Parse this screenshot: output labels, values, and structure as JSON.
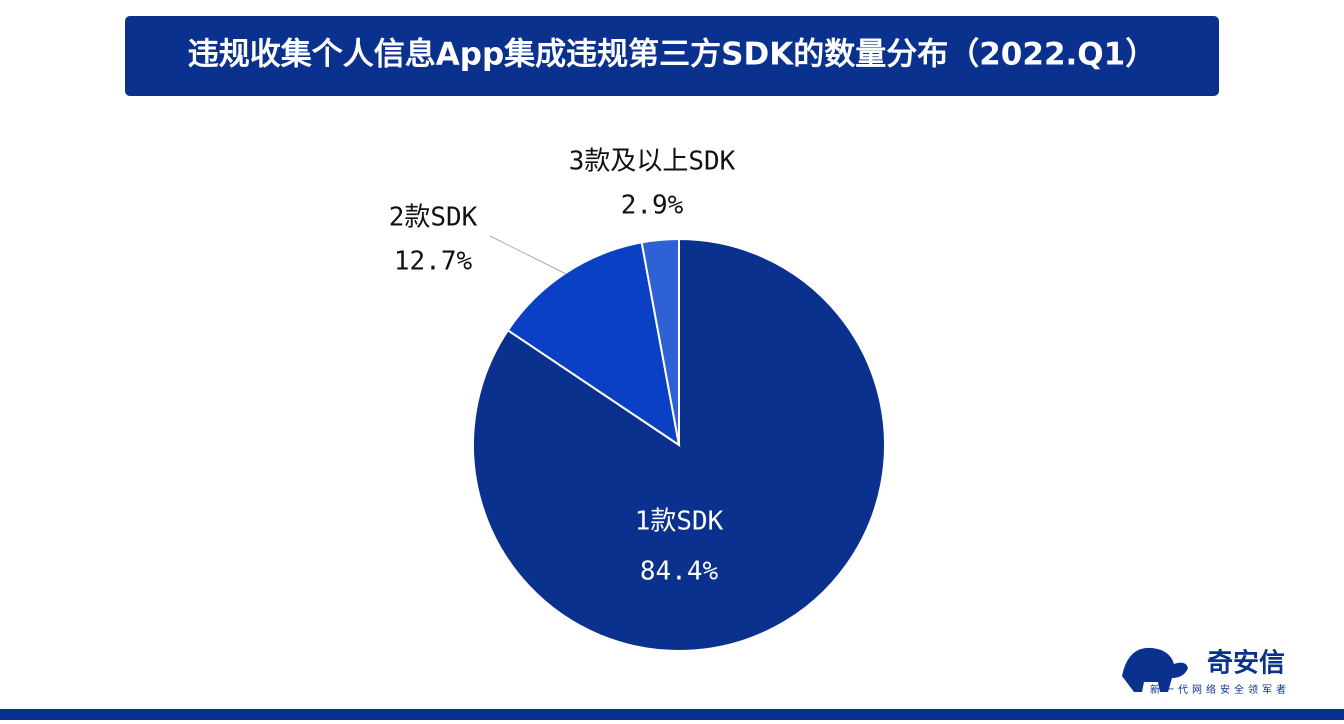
{
  "chart_data": {
    "type": "pie",
    "title": "违规收集个人信息App集成违规第三方SDK的数量分布（2022.Q1）",
    "categories": [
      "1款SDK",
      "2款SDK",
      "3款及以上SDK"
    ],
    "values": [
      84.4,
      12.7,
      2.9
    ],
    "value_labels": [
      "84.4%",
      "12.7%",
      "2.9%"
    ],
    "colors": [
      "#0b318f",
      "#0a40c4",
      "#2e62d4"
    ]
  },
  "logo": {
    "name": "奇安信",
    "slogan": "新一代网络安全领军者"
  }
}
